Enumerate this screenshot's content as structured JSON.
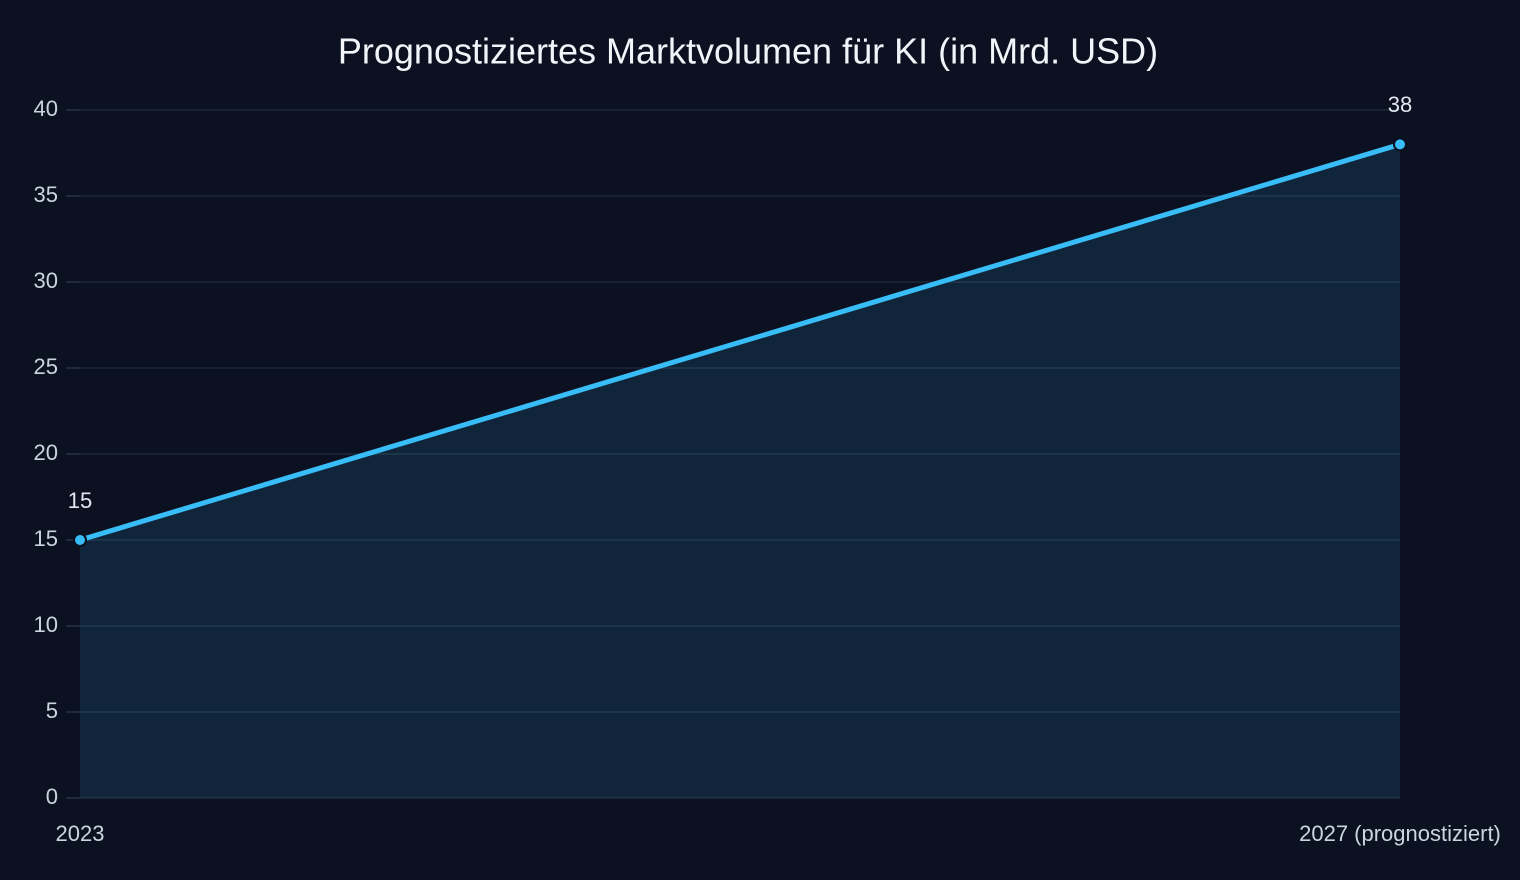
{
  "chart_data": {
    "type": "area",
    "title": "Prognostiziertes Marktvolumen für KI (in Mrd. USD)",
    "categories": [
      "2023",
      "2027 (prognostiziert)"
    ],
    "values": [
      15,
      38
    ],
    "color": "#38bdf8",
    "ylim": [
      0,
      40
    ],
    "yticks": [
      0,
      5,
      10,
      15,
      20,
      25,
      30,
      35,
      40
    ],
    "grid": true
  }
}
